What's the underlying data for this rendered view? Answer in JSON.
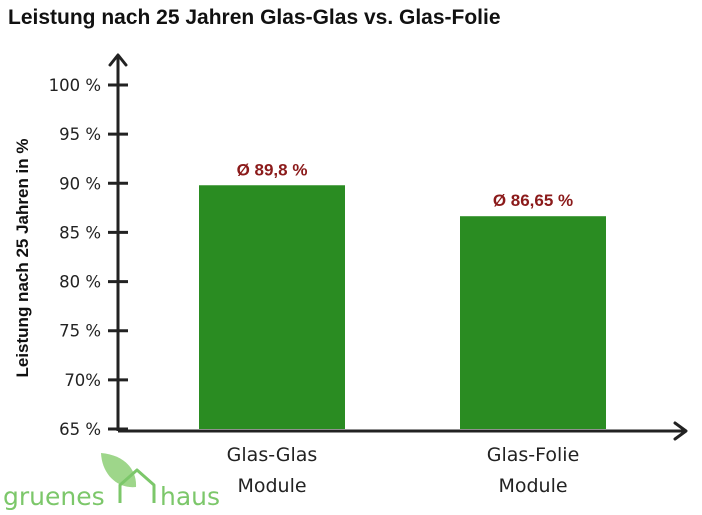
{
  "chart_data": {
    "type": "bar",
    "title": "Leistung nach 25 Jahren Glas-Glas vs. Glas-Folie",
    "xlabel": "",
    "ylabel": "Leistung nach 25 Jahren in %",
    "categories": [
      [
        "Glas-Glas",
        "Module"
      ],
      [
        "Glas-Folie",
        "Module"
      ]
    ],
    "values": [
      89.8,
      86.65
    ],
    "data_labels": [
      "Ø 89,8 %",
      "Ø 86,65 %"
    ],
    "ylim": [
      65,
      100
    ],
    "yticks": [
      65,
      70,
      75,
      80,
      85,
      90,
      95,
      100
    ],
    "ytick_labels": [
      "65 %",
      "70%",
      "75 %",
      "80 %",
      "85 %",
      "90 %",
      "95 %",
      "100 %"
    ],
    "grid": false,
    "bar_color": "#2a8c22",
    "label_color": "#8b1a1a"
  },
  "logo": {
    "word1": "gruenes",
    "word2": "haus",
    "text_color": "#7cc76a",
    "icon_color": "#9ed68a"
  }
}
